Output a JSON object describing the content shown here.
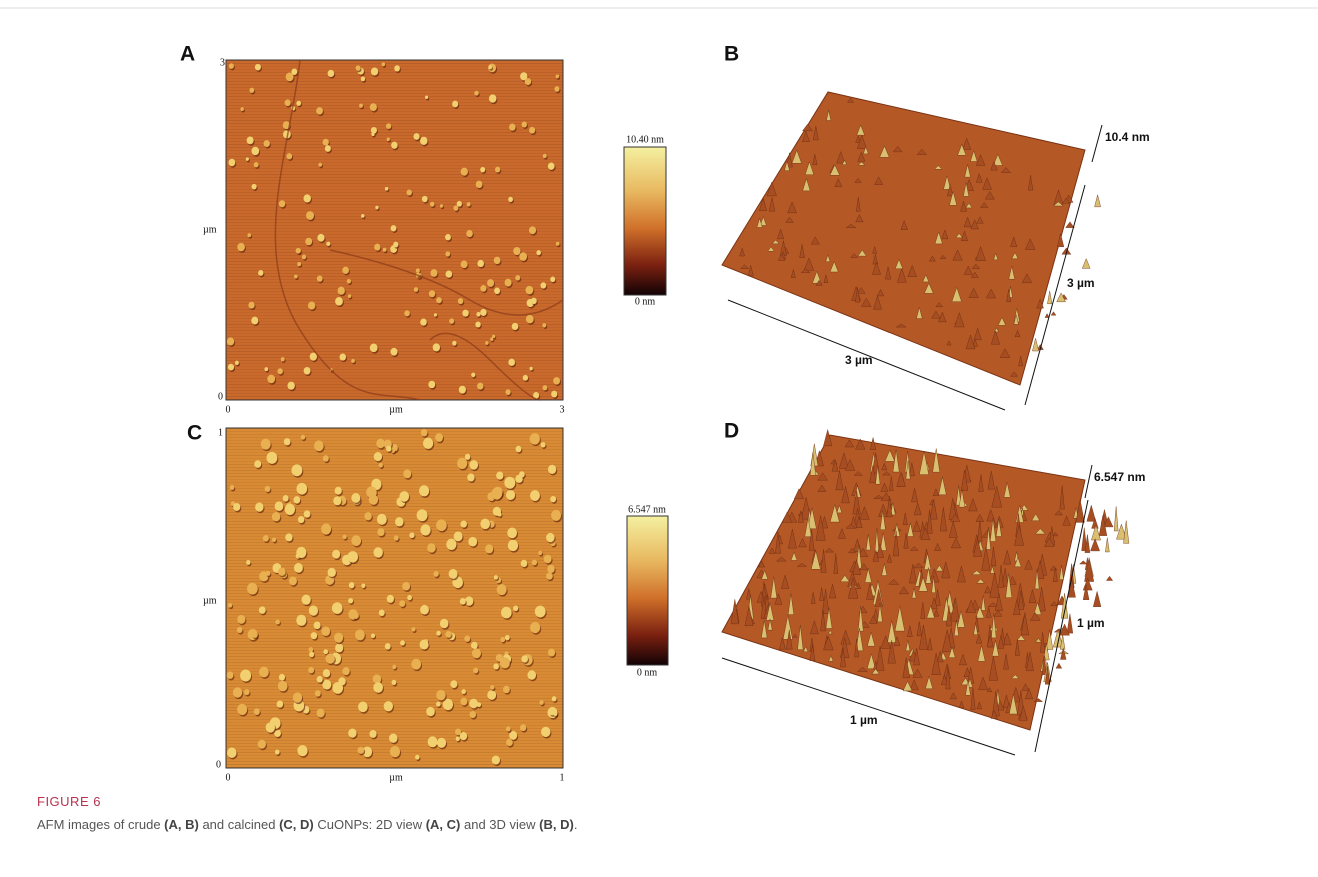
{
  "panels": [
    {
      "label": "A",
      "y_top": "3",
      "y_unit": "µm",
      "y_bottom": "0",
      "x_left": "0",
      "x_unit": "µm",
      "x_right": "3",
      "scale_max": "10.40 nm",
      "scale_min": "0 nm"
    },
    {
      "label": "B",
      "height": "10.4 nm",
      "side": "3 µm",
      "front": "3 µm"
    },
    {
      "label": "C",
      "y_top": "1",
      "y_unit": "µm",
      "y_bottom": "0",
      "x_left": "0",
      "x_unit": "µm",
      "x_right": "1",
      "scale_max": "6.547 nm",
      "scale_min": "0 nm"
    },
    {
      "label": "D",
      "height": "6.547 nm",
      "side": "1 µm",
      "front": "1 µm"
    }
  ],
  "caption": {
    "figure": "FIGURE 6",
    "parts": [
      {
        "text": "AFM images of crude ",
        "bold": false
      },
      {
        "text": "(A, B)",
        "bold": true
      },
      {
        "text": " and calcined ",
        "bold": false
      },
      {
        "text": "(C, D)",
        "bold": true
      },
      {
        "text": " CuONPs: 2D view ",
        "bold": false
      },
      {
        "text": "(A, C)",
        "bold": true
      },
      {
        "text": " and 3D view ",
        "bold": false
      },
      {
        "text": "(B, D)",
        "bold": true
      },
      {
        "text": ".",
        "bold": false
      }
    ]
  }
}
